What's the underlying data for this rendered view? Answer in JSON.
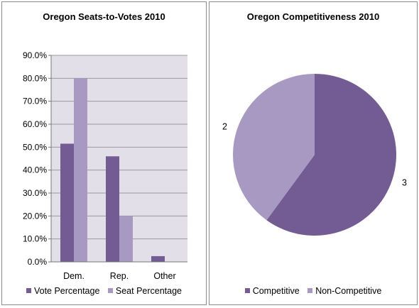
{
  "colors": {
    "series1": "#735b94",
    "series2": "#a899c2",
    "plot_bg": "#e2dfe9",
    "grid": "#9a9a9a"
  },
  "chart_data": [
    {
      "type": "bar",
      "title": "Oregon Seats-to-Votes 2010",
      "categories": [
        "Dem.",
        "Rep.",
        "Other"
      ],
      "series": [
        {
          "name": "Vote Percentage",
          "values": [
            51.5,
            46.0,
            2.5
          ]
        },
        {
          "name": "Seat Percentage",
          "values": [
            80.0,
            20.0,
            0.0
          ]
        }
      ],
      "ylim": [
        0,
        90
      ],
      "yticks": [
        "0.0%",
        "10.0%",
        "20.0%",
        "30.0%",
        "40.0%",
        "50.0%",
        "60.0%",
        "70.0%",
        "80.0%",
        "90.0%"
      ],
      "grid": true,
      "legend": "bottom"
    },
    {
      "type": "pie",
      "title": "Oregon Competitiveness 2010",
      "labels": [
        "Competitive",
        "Non-Competitive"
      ],
      "values": [
        3,
        2
      ],
      "data_labels": [
        "3",
        "2"
      ],
      "legend": "bottom"
    }
  ]
}
